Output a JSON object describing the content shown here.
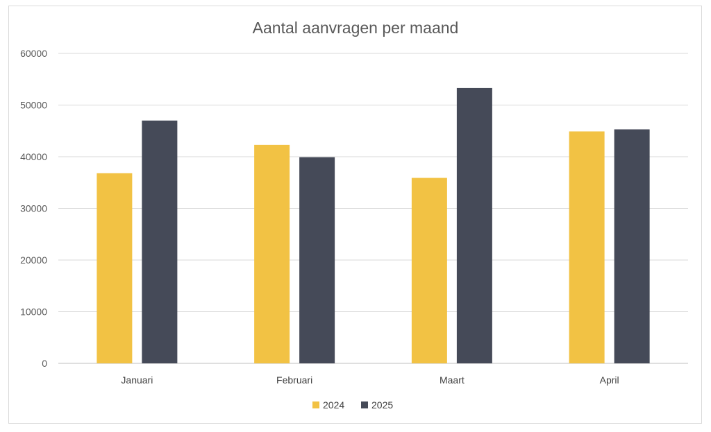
{
  "chart_data": {
    "type": "bar",
    "title": "Aantal aanvragen per maand",
    "categories": [
      "Januari",
      "Februari",
      "Maart",
      "April"
    ],
    "series": [
      {
        "name": "2024",
        "values": [
          36800,
          42300,
          35900,
          44900
        ],
        "color": "#f2c244"
      },
      {
        "name": "2025",
        "values": [
          47000,
          39900,
          53300,
          45300
        ],
        "color": "#454a58"
      }
    ],
    "xlabel": "",
    "ylabel": "",
    "ylim": [
      0,
      60000
    ],
    "yticks": [
      0,
      10000,
      20000,
      30000,
      40000,
      50000,
      60000
    ],
    "grid": true,
    "legend": "bottom"
  }
}
